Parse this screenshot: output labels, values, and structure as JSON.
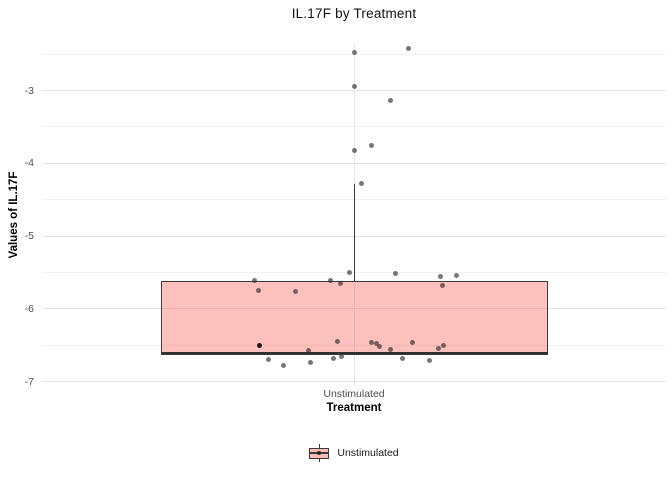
{
  "title": "IL.17F by Treatment",
  "axes": {
    "x_label": "Treatment",
    "y_label": "Values of IL.17F",
    "x_tick": "Unstimulated",
    "y_ticks": [
      -3,
      -4,
      -5,
      -6,
      -7
    ],
    "y_minor_ticks": [
      -2.5,
      -3.5,
      -4.5,
      -5.5,
      -6.5
    ],
    "y_range": [
      -7.06,
      -2.36
    ]
  },
  "legend": {
    "label": "Unstimulated"
  },
  "colors": {
    "box_fill": "rgba(248,118,109,0.45)",
    "box_stroke": "#3a3a3a",
    "grid_major": "#e3e3e3",
    "grid_minor": "#f1f1f1",
    "tick_text": "#4d4d4d",
    "point": "rgba(35,35,35,0.62)"
  },
  "chart_data": {
    "type": "boxplot",
    "title": "IL.17F by Treatment",
    "xlabel": "Treatment",
    "ylabel": "Values of IL.17F",
    "categories": [
      "Unstimulated"
    ],
    "ylim": [
      -7.06,
      -2.36
    ],
    "grid": true,
    "legend_position": "bottom",
    "box": {
      "category": "Unstimulated",
      "q1": -6.63,
      "median": -6.61,
      "q3": -5.62,
      "whisker_high": -4.29,
      "whisker_low": -6.63,
      "outliers": [
        -2.48,
        -2.95,
        -3.83
      ]
    },
    "points": [
      {
        "dx": 53.8,
        "v": -2.42
      },
      {
        "dx": -0.5,
        "v": -2.48
      },
      {
        "dx": -0.5,
        "v": -2.95
      },
      {
        "dx": 36.2,
        "v": -3.13
      },
      {
        "dx": 16.5,
        "v": -3.76
      },
      {
        "dx": -0.5,
        "v": -3.83
      },
      {
        "dx": 7.2,
        "v": -4.28
      },
      {
        "dx": -100.5,
        "v": -5.61
      },
      {
        "dx": -95.8,
        "v": -5.75
      },
      {
        "dx": -58.8,
        "v": -5.76
      },
      {
        "dx": -24.5,
        "v": -5.61
      },
      {
        "dx": -14.5,
        "v": -5.65
      },
      {
        "dx": -5.5,
        "v": -5.5
      },
      {
        "dx": 41.0,
        "v": -5.52
      },
      {
        "dx": 85.8,
        "v": -5.56
      },
      {
        "dx": 101.8,
        "v": -5.54
      },
      {
        "dx": 88.2,
        "v": -5.68
      },
      {
        "dx": -95.2,
        "v": -6.5,
        "dark": true
      },
      {
        "dx": -17.0,
        "v": -6.45
      },
      {
        "dx": 17.2,
        "v": -6.46
      },
      {
        "dx": 21.8,
        "v": -6.47
      },
      {
        "dx": 24.8,
        "v": -6.52
      },
      {
        "dx": 35.8,
        "v": -6.56
      },
      {
        "dx": -45.8,
        "v": -6.57
      },
      {
        "dx": 58.2,
        "v": -6.46
      },
      {
        "dx": 83.5,
        "v": -6.55
      },
      {
        "dx": 89.2,
        "v": -6.51
      },
      {
        "dx": -85.8,
        "v": -6.7
      },
      {
        "dx": -21.0,
        "v": -6.68
      },
      {
        "dx": -13.0,
        "v": -6.66
      },
      {
        "dx": 48.0,
        "v": -6.68
      },
      {
        "dx": -44.0,
        "v": -6.74
      },
      {
        "dx": -70.8,
        "v": -6.78
      },
      {
        "dx": 75.0,
        "v": -6.71
      }
    ]
  }
}
